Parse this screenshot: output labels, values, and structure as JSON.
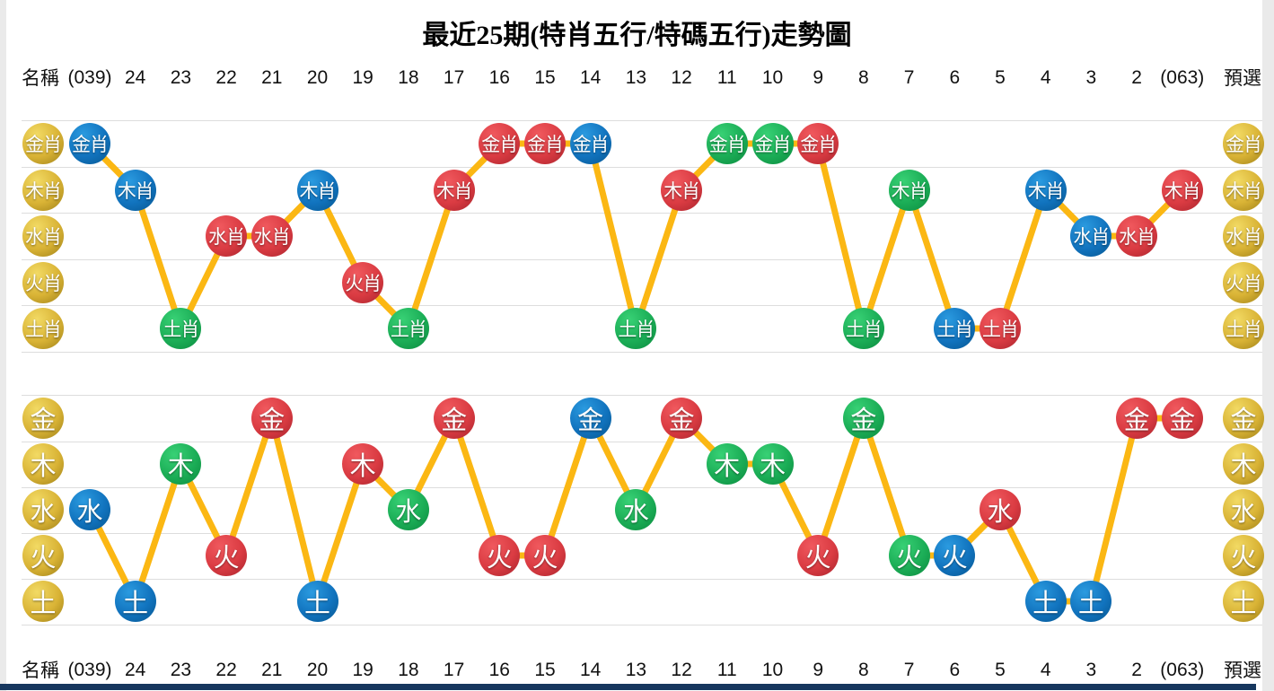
{
  "title": "最近25期(特肖五行/特碼五行)走勢圖",
  "header": {
    "name_label": "名稱",
    "preselect_label": "預選",
    "columns": [
      "(039)",
      "24",
      "23",
      "22",
      "21",
      "20",
      "19",
      "18",
      "17",
      "16",
      "15",
      "14",
      "13",
      "12",
      "11",
      "10",
      "9",
      "8",
      "7",
      "6",
      "5",
      "4",
      "3",
      "2",
      "(063)"
    ]
  },
  "colors": {
    "blue": "#1173BE",
    "red": "#DA3B42",
    "green": "#1BAD56",
    "gold": "#C9A227",
    "line": "#FBB713",
    "grid": "#DDDDDD",
    "bottom_bar": "#17375E"
  },
  "chart_data": [
    {
      "type": "line",
      "title": "特肖五行",
      "legend_position": "none",
      "grid": true,
      "rows": [
        "金肖",
        "木肖",
        "水肖",
        "火肖",
        "土肖"
      ],
      "categories": [
        "(039)",
        "24",
        "23",
        "22",
        "21",
        "20",
        "19",
        "18",
        "17",
        "16",
        "15",
        "14",
        "13",
        "12",
        "11",
        "10",
        "9",
        "8",
        "7",
        "6",
        "5",
        "4",
        "3",
        "2",
        "(063)"
      ],
      "points": [
        {
          "col": "(039)",
          "value": "金肖",
          "color": "blue"
        },
        {
          "col": "24",
          "value": "木肖",
          "color": "blue"
        },
        {
          "col": "23",
          "value": "土肖",
          "color": "green"
        },
        {
          "col": "22",
          "value": "水肖",
          "color": "red"
        },
        {
          "col": "21",
          "value": "水肖",
          "color": "red"
        },
        {
          "col": "20",
          "value": "木肖",
          "color": "blue"
        },
        {
          "col": "19",
          "value": "火肖",
          "color": "red"
        },
        {
          "col": "18",
          "value": "土肖",
          "color": "green"
        },
        {
          "col": "17",
          "value": "木肖",
          "color": "red"
        },
        {
          "col": "16",
          "value": "金肖",
          "color": "red"
        },
        {
          "col": "15",
          "value": "金肖",
          "color": "red"
        },
        {
          "col": "14",
          "value": "金肖",
          "color": "blue"
        },
        {
          "col": "13",
          "value": "土肖",
          "color": "green"
        },
        {
          "col": "12",
          "value": "木肖",
          "color": "red"
        },
        {
          "col": "11",
          "value": "金肖",
          "color": "green"
        },
        {
          "col": "10",
          "value": "金肖",
          "color": "green"
        },
        {
          "col": "9",
          "value": "金肖",
          "color": "red"
        },
        {
          "col": "8",
          "value": "土肖",
          "color": "green"
        },
        {
          "col": "7",
          "value": "木肖",
          "color": "green"
        },
        {
          "col": "6",
          "value": "土肖",
          "color": "blue"
        },
        {
          "col": "5",
          "value": "土肖",
          "color": "red"
        },
        {
          "col": "4",
          "value": "木肖",
          "color": "blue"
        },
        {
          "col": "3",
          "value": "水肖",
          "color": "blue"
        },
        {
          "col": "2",
          "value": "水肖",
          "color": "red"
        },
        {
          "col": "(063)",
          "value": "木肖",
          "color": "red"
        }
      ]
    },
    {
      "type": "line",
      "title": "特碼五行",
      "legend_position": "none",
      "grid": true,
      "rows": [
        "金",
        "木",
        "水",
        "火",
        "土"
      ],
      "categories": [
        "(039)",
        "24",
        "23",
        "22",
        "21",
        "20",
        "19",
        "18",
        "17",
        "16",
        "15",
        "14",
        "13",
        "12",
        "11",
        "10",
        "9",
        "8",
        "7",
        "6",
        "5",
        "4",
        "3",
        "2",
        "(063)"
      ],
      "points": [
        {
          "col": "(039)",
          "value": "水",
          "color": "blue"
        },
        {
          "col": "24",
          "value": "土",
          "color": "blue"
        },
        {
          "col": "23",
          "value": "木",
          "color": "green"
        },
        {
          "col": "22",
          "value": "火",
          "color": "red"
        },
        {
          "col": "21",
          "value": "金",
          "color": "red"
        },
        {
          "col": "20",
          "value": "土",
          "color": "blue"
        },
        {
          "col": "19",
          "value": "木",
          "color": "red"
        },
        {
          "col": "18",
          "value": "水",
          "color": "green"
        },
        {
          "col": "17",
          "value": "金",
          "color": "red"
        },
        {
          "col": "16",
          "value": "火",
          "color": "red"
        },
        {
          "col": "15",
          "value": "火",
          "color": "red"
        },
        {
          "col": "14",
          "value": "金",
          "color": "blue"
        },
        {
          "col": "13",
          "value": "水",
          "color": "green"
        },
        {
          "col": "12",
          "value": "金",
          "color": "red"
        },
        {
          "col": "11",
          "value": "木",
          "color": "green"
        },
        {
          "col": "10",
          "value": "木",
          "color": "green"
        },
        {
          "col": "9",
          "value": "火",
          "color": "red"
        },
        {
          "col": "8",
          "value": "金",
          "color": "green"
        },
        {
          "col": "7",
          "value": "火",
          "color": "green"
        },
        {
          "col": "6",
          "value": "火",
          "color": "blue"
        },
        {
          "col": "5",
          "value": "水",
          "color": "red"
        },
        {
          "col": "4",
          "value": "土",
          "color": "blue"
        },
        {
          "col": "3",
          "value": "土",
          "color": "blue"
        },
        {
          "col": "2",
          "value": "金",
          "color": "red"
        },
        {
          "col": "(063)",
          "value": "金",
          "color": "red"
        }
      ]
    }
  ]
}
